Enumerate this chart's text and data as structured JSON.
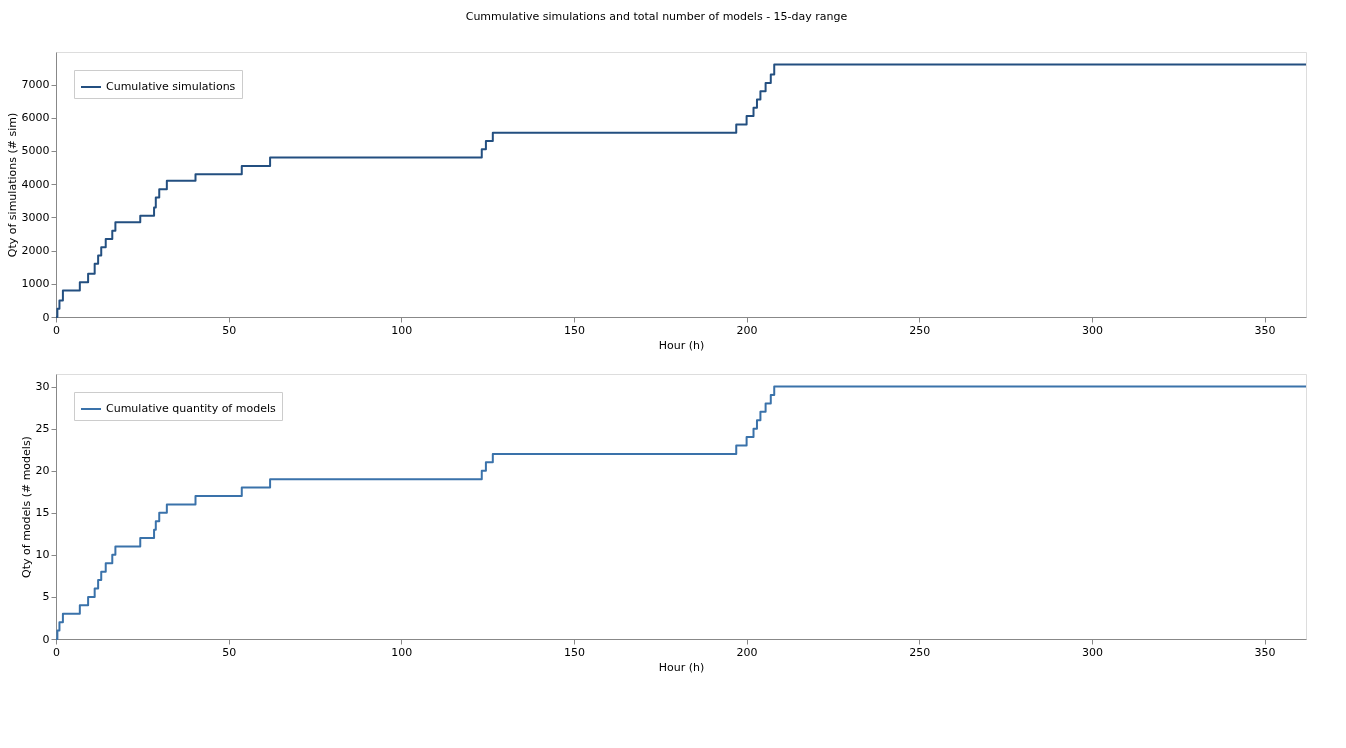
{
  "chart_data": [
    {
      "type": "step",
      "title": "Cummulative simulations and total number of models - 15-day range",
      "xlabel": "Hour (h)",
      "ylabel": "Qty of simulations (# sim)",
      "series": [
        {
          "name": "Cumulative simulations",
          "color": "#234f80",
          "x": [
            0,
            0.4,
            1,
            2,
            6.9,
            9.3,
            11.2,
            12.2,
            13.1,
            14.4,
            16.3,
            17.2,
            24.4,
            28.4,
            28.9,
            29.9,
            32.1,
            40.4,
            53.8,
            62,
            123.3,
            124.5,
            126.5,
            197,
            200,
            202,
            203,
            204,
            205.5,
            207,
            208,
            362
          ],
          "values": [
            0,
            250,
            500,
            800,
            1050,
            1300,
            1600,
            1850,
            2100,
            2350,
            2600,
            2850,
            3050,
            3300,
            3600,
            3850,
            4100,
            4300,
            4550,
            4800,
            5050,
            5300,
            5550,
            5800,
            6050,
            6300,
            6550,
            6800,
            7050,
            7300,
            7600,
            7600
          ]
        }
      ],
      "xlim": [
        0,
        362
      ],
      "ylim": [
        0,
        7980
      ],
      "xticks": [
        0,
        50,
        100,
        150,
        200,
        250,
        300,
        350
      ],
      "yticks": [
        0,
        1000,
        2000,
        3000,
        4000,
        5000,
        6000,
        7000
      ],
      "legend": "top left",
      "grid": false
    },
    {
      "type": "step",
      "xlabel": "Hour (h)",
      "ylabel": "Qty of models (# models)",
      "series": [
        {
          "name": "Cumulative quantity of models",
          "color": "#3a72aa",
          "x": [
            0,
            0.4,
            1,
            2,
            6.9,
            9.3,
            11.2,
            12.2,
            13.1,
            14.4,
            16.3,
            17.2,
            24.4,
            28.4,
            28.9,
            29.9,
            32.1,
            40.4,
            53.8,
            62,
            123.3,
            124.5,
            126.5,
            197,
            200,
            202,
            203,
            204,
            205.5,
            207,
            208,
            362
          ],
          "values": [
            0,
            1,
            2,
            3,
            4,
            5,
            6,
            7,
            8,
            9,
            10,
            11,
            12,
            13,
            14,
            15,
            16,
            17,
            18,
            19,
            20,
            21,
            22,
            23,
            24,
            25,
            26,
            27,
            28,
            29,
            30,
            30
          ]
        }
      ],
      "xlim": [
        0,
        362
      ],
      "ylim": [
        0,
        31.5
      ],
      "xticks": [
        0,
        50,
        100,
        150,
        200,
        250,
        300,
        350
      ],
      "yticks": [
        0,
        5,
        10,
        15,
        20,
        25,
        30
      ],
      "legend": "top left",
      "grid": false
    }
  ]
}
